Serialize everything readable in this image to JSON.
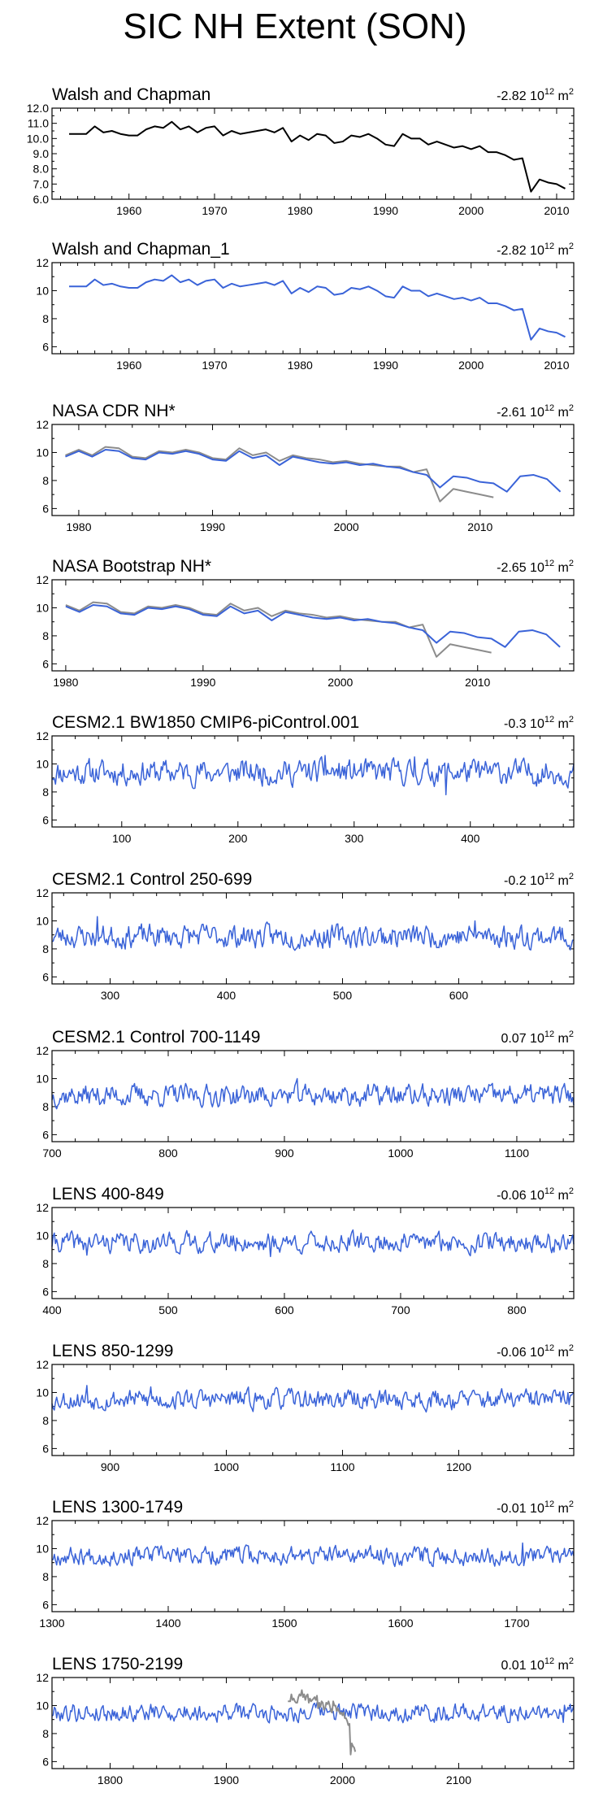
{
  "page_title": "SIC NH Extent (SON)",
  "trend_unit": "10",
  "trend_exp": "12",
  "trend_m": "m",
  "trend_sq": "2",
  "colors": {
    "model": "#3a63d8",
    "black": "#000000",
    "reference": "#8c8c8c"
  },
  "chart_data": [
    {
      "type": "line",
      "title": "Walsh and Chapman",
      "trend": "-2.82",
      "xlim": [
        1951,
        2012
      ],
      "ylim": [
        6.0,
        12.0
      ],
      "xticks": [
        "1960",
        "1970",
        "1980",
        "1990",
        "2000",
        "2010"
      ],
      "yticks": [
        "6.0",
        "7.0",
        "8.0",
        "9.0",
        "10.0",
        "11.0",
        "12.0"
      ],
      "series": [
        {
          "color": "black",
          "x_start": 1953,
          "values": [
            10.3,
            10.3,
            10.3,
            10.8,
            10.4,
            10.5,
            10.3,
            10.2,
            10.2,
            10.6,
            10.8,
            10.7,
            11.1,
            10.6,
            10.8,
            10.4,
            10.7,
            10.8,
            10.2,
            10.5,
            10.3,
            10.4,
            10.5,
            10.6,
            10.4,
            10.7,
            9.8,
            10.2,
            9.9,
            10.3,
            10.2,
            9.7,
            9.8,
            10.2,
            10.1,
            10.3,
            10.0,
            9.6,
            9.5,
            10.3,
            10.0,
            10.0,
            9.6,
            9.8,
            9.6,
            9.4,
            9.5,
            9.3,
            9.5,
            9.1,
            9.1,
            8.9,
            8.6,
            8.7,
            6.5,
            7.3,
            7.1,
            7.0,
            6.7
          ]
        }
      ]
    },
    {
      "type": "line",
      "title": "Walsh and Chapman_1",
      "trend": "-2.82",
      "xlim": [
        1951,
        2012
      ],
      "ylim": [
        5.5,
        12.0
      ],
      "xticks": [
        "1960",
        "1970",
        "1980",
        "1990",
        "2000",
        "2010"
      ],
      "yticks": [
        "6",
        "8",
        "10",
        "12"
      ],
      "series": [
        {
          "color": "model",
          "x_start": 1953,
          "values": [
            10.3,
            10.3,
            10.3,
            10.8,
            10.4,
            10.5,
            10.3,
            10.2,
            10.2,
            10.6,
            10.8,
            10.7,
            11.1,
            10.6,
            10.8,
            10.4,
            10.7,
            10.8,
            10.2,
            10.5,
            10.3,
            10.4,
            10.5,
            10.6,
            10.4,
            10.7,
            9.8,
            10.2,
            9.9,
            10.3,
            10.2,
            9.7,
            9.8,
            10.2,
            10.1,
            10.3,
            10.0,
            9.6,
            9.5,
            10.3,
            10.0,
            10.0,
            9.6,
            9.8,
            9.6,
            9.4,
            9.5,
            9.3,
            9.5,
            9.1,
            9.1,
            8.9,
            8.6,
            8.7,
            6.5,
            7.3,
            7.1,
            7.0,
            6.7
          ]
        }
      ]
    },
    {
      "type": "line",
      "title": "NASA CDR NH*",
      "trend": "-2.61",
      "xlim": [
        1978,
        2017
      ],
      "ylim": [
        5.5,
        12.0
      ],
      "xticks": [
        "1980",
        "1990",
        "2000",
        "2010"
      ],
      "yticks": [
        "6",
        "8",
        "10",
        "12"
      ],
      "series": [
        {
          "color": "reference",
          "x_start": 1979,
          "values": [
            9.8,
            10.2,
            9.8,
            10.4,
            10.3,
            9.7,
            9.6,
            10.1,
            10.0,
            10.2,
            10.0,
            9.6,
            9.5,
            10.3,
            9.8,
            10.0,
            9.4,
            9.8,
            9.6,
            9.5,
            9.3,
            9.4,
            9.2,
            9.1,
            9.0,
            9.0,
            8.6,
            8.8,
            6.5,
            7.4,
            7.2,
            7.0,
            6.8
          ]
        },
        {
          "color": "model",
          "x_start": 1979,
          "values": [
            9.7,
            10.1,
            9.7,
            10.2,
            10.1,
            9.6,
            9.5,
            10.0,
            9.9,
            10.1,
            9.9,
            9.5,
            9.4,
            10.1,
            9.6,
            9.8,
            9.1,
            9.7,
            9.5,
            9.3,
            9.2,
            9.3,
            9.1,
            9.2,
            9.0,
            8.9,
            8.6,
            8.4,
            7.5,
            8.3,
            8.2,
            7.9,
            7.8,
            7.2,
            8.3,
            8.4,
            8.1,
            7.2
          ]
        }
      ]
    },
    {
      "type": "line",
      "title": "NASA Bootstrap NH*",
      "trend": "-2.65",
      "xlim": [
        1979,
        2017
      ],
      "ylim": [
        5.5,
        12.0
      ],
      "xticks": [
        "1980",
        "1990",
        "2000",
        "2010"
      ],
      "yticks": [
        "6",
        "8",
        "10",
        "12"
      ],
      "series": [
        {
          "color": "reference",
          "x_start": 1980,
          "values": [
            10.2,
            9.8,
            10.4,
            10.3,
            9.7,
            9.6,
            10.1,
            10.0,
            10.2,
            10.0,
            9.6,
            9.5,
            10.3,
            9.8,
            10.0,
            9.4,
            9.8,
            9.6,
            9.5,
            9.3,
            9.4,
            9.2,
            9.1,
            9.0,
            9.0,
            8.6,
            8.8,
            6.5,
            7.4,
            7.2,
            7.0,
            6.8
          ]
        },
        {
          "color": "model",
          "x_start": 1980,
          "values": [
            10.1,
            9.7,
            10.2,
            10.1,
            9.6,
            9.5,
            10.0,
            9.9,
            10.1,
            9.9,
            9.5,
            9.4,
            10.1,
            9.6,
            9.8,
            9.1,
            9.7,
            9.5,
            9.3,
            9.2,
            9.3,
            9.1,
            9.2,
            9.0,
            8.9,
            8.6,
            8.4,
            7.5,
            8.3,
            8.2,
            7.9,
            7.8,
            7.2,
            8.3,
            8.4,
            8.1,
            7.2
          ]
        }
      ]
    },
    {
      "type": "line",
      "title": "CESM2.1 BW1850 CMIP6-piControl.001",
      "trend": "-0.3",
      "xlim": [
        40,
        489
      ],
      "ylim": [
        5.5,
        12.0
      ],
      "xticks": [
        "100",
        "200",
        "300",
        "400"
      ],
      "yticks": [
        "6",
        "8",
        "10",
        "12"
      ],
      "series": [
        {
          "color": "model",
          "x_start": 40,
          "noise": {
            "n": 450,
            "mean": 9.4,
            "amp": 0.75,
            "seed": 11,
            "dips": [
              [
                379,
                7.8
              ],
              [
                275,
                10.6
              ],
              [
                352,
                10.5
              ]
            ]
          }
        }
      ]
    },
    {
      "type": "line",
      "title": "CESM2.1 Control 250-699",
      "trend": "-0.2",
      "xlim": [
        250,
        699
      ],
      "ylim": [
        5.5,
        12.0
      ],
      "xticks": [
        "300",
        "400",
        "500",
        "600"
      ],
      "yticks": [
        "6",
        "8",
        "10",
        "12"
      ],
      "series": [
        {
          "color": "model",
          "x_start": 250,
          "noise": {
            "n": 450,
            "mean": 8.9,
            "amp": 0.7,
            "seed": 23,
            "dips": [
              [
                289,
                10.3
              ],
              [
                614,
                10.0
              ]
            ]
          }
        }
      ]
    },
    {
      "type": "line",
      "title": "CESM2.1 Control 700-1149",
      "trend": "0.07",
      "xlim": [
        700,
        1149
      ],
      "ylim": [
        5.5,
        12.0
      ],
      "xticks": [
        "700",
        "800",
        "900",
        "1000",
        "1100"
      ],
      "yticks": [
        "6",
        "8",
        "10",
        "12"
      ],
      "series": [
        {
          "color": "model",
          "x_start": 700,
          "noise": {
            "n": 450,
            "mean": 8.8,
            "amp": 0.65,
            "seed": 37,
            "dips": [
              [
                911,
                10.0
              ]
            ]
          }
        }
      ]
    },
    {
      "type": "line",
      "title": "LENS 400-849",
      "trend": "-0.06",
      "xlim": [
        400,
        849
      ],
      "ylim": [
        5.5,
        12.0
      ],
      "xticks": [
        "400",
        "500",
        "600",
        "700",
        "800"
      ],
      "yticks": [
        "6",
        "8",
        "10",
        "12"
      ],
      "series": [
        {
          "color": "model",
          "x_start": 400,
          "noise": {
            "n": 450,
            "mean": 9.5,
            "amp": 0.6,
            "seed": 41,
            "dips": [
              [
                430,
                8.6
              ],
              [
                588,
                8.5
              ]
            ]
          }
        }
      ]
    },
    {
      "type": "line",
      "title": "LENS 850-1299",
      "trend": "-0.06",
      "xlim": [
        850,
        1299
      ],
      "ylim": [
        5.5,
        12.0
      ],
      "xticks": [
        "900",
        "1000",
        "1100",
        "1200"
      ],
      "yticks": [
        "6",
        "8",
        "10",
        "12"
      ],
      "series": [
        {
          "color": "model",
          "x_start": 850,
          "noise": {
            "n": 450,
            "mean": 9.5,
            "amp": 0.6,
            "seed": 53,
            "dips": [
              [
                880,
                10.5
              ],
              [
                935,
                10.4
              ]
            ]
          }
        }
      ]
    },
    {
      "type": "line",
      "title": "LENS 1300-1749",
      "trend": "-0.01",
      "xlim": [
        1300,
        1749
      ],
      "ylim": [
        5.5,
        12.0
      ],
      "xticks": [
        "1300",
        "1400",
        "1500",
        "1600",
        "1700"
      ],
      "yticks": [
        "6",
        "8",
        "10",
        "12"
      ],
      "series": [
        {
          "color": "model",
          "x_start": 1300,
          "noise": {
            "n": 450,
            "mean": 9.5,
            "amp": 0.55,
            "seed": 67,
            "dips": [
              [
                1705,
                10.4
              ]
            ]
          }
        }
      ]
    },
    {
      "type": "line",
      "title": "LENS 1750-2199",
      "trend": "0.01",
      "xlim": [
        1750,
        2199
      ],
      "ylim": [
        5.5,
        12.0
      ],
      "xticks": [
        "1800",
        "1900",
        "2000",
        "2100"
      ],
      "yticks": [
        "6",
        "8",
        "10",
        "12"
      ],
      "series": [
        {
          "color": "model",
          "x_start": 1750,
          "noise": {
            "n": 450,
            "mean": 9.5,
            "amp": 0.55,
            "seed": 79,
            "dips": [
              [
                2190,
                8.8
              ]
            ]
          }
        },
        {
          "color": "reference",
          "x_start": 1953,
          "values": [
            10.3,
            10.3,
            10.3,
            10.8,
            10.4,
            10.5,
            10.3,
            10.2,
            10.2,
            10.6,
            10.8,
            10.7,
            11.1,
            10.6,
            10.8,
            10.4,
            10.7,
            10.8,
            10.2,
            10.5,
            10.3,
            10.4,
            10.5,
            10.6,
            10.4,
            10.7,
            9.8,
            10.2,
            9.9,
            10.3,
            10.2,
            9.7,
            9.8,
            10.2,
            10.1,
            10.3,
            10.0,
            9.6,
            9.5,
            10.3,
            10.0,
            10.0,
            9.6,
            9.8,
            9.6,
            9.4,
            9.5,
            9.3,
            9.5,
            9.1,
            9.1,
            8.9,
            8.6,
            8.7,
            6.5,
            7.3,
            7.1,
            7.0,
            6.7
          ]
        }
      ]
    }
  ]
}
